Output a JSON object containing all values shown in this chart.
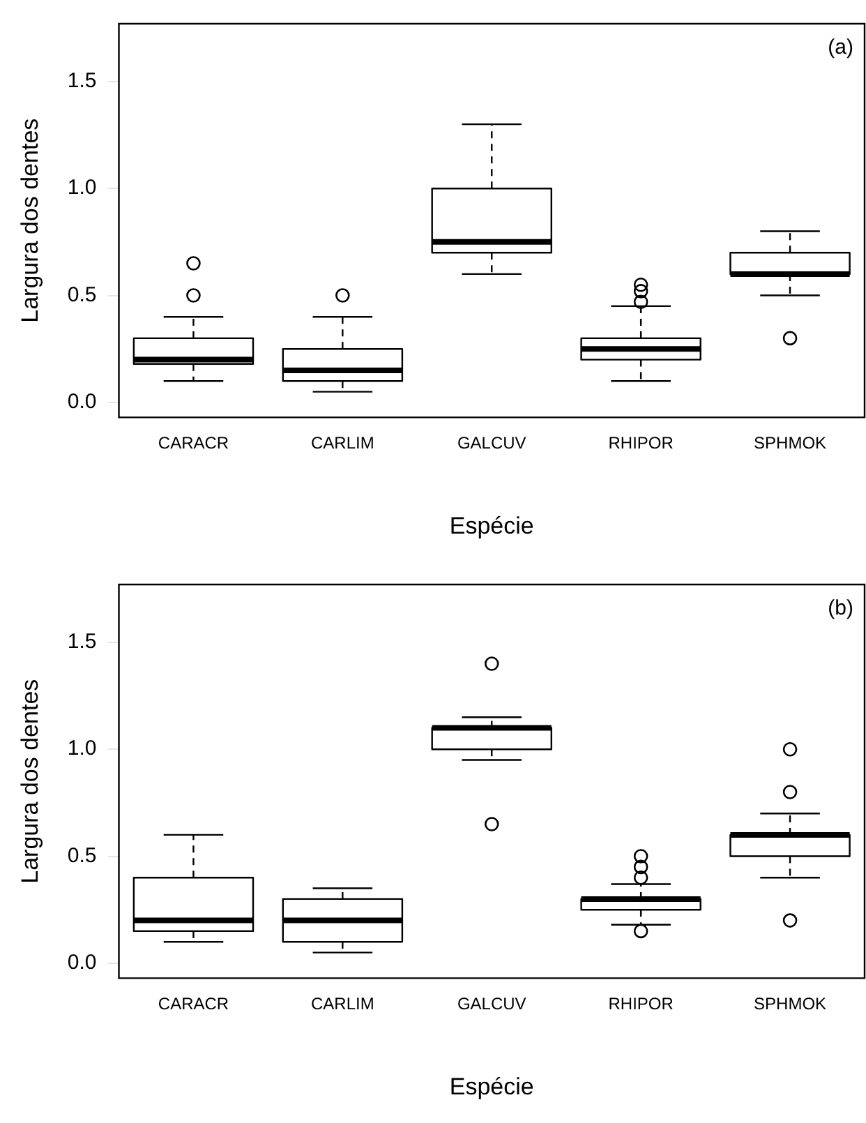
{
  "chart_data": [
    {
      "type": "box",
      "annotations": [
        "(a)"
      ],
      "xlabel": "Espécie",
      "ylabel": "Largura dos dentes",
      "categories": [
        "CARACR",
        "CARLIM",
        "GALCUV",
        "RHIPOR",
        "SPHMOK"
      ],
      "ylim": [
        -0.07,
        1.77
      ],
      "yticks": [
        {
          "value": 0,
          "label": "0.0"
        },
        {
          "value": 0.5,
          "label": "0.5"
        },
        {
          "value": 1,
          "label": "1.0"
        },
        {
          "value": 1.5,
          "label": "1.5"
        }
      ],
      "grid": false,
      "legend": false,
      "marker": "circle",
      "color": "#000000",
      "boxes": [
        {
          "low": 0.1,
          "q1": 0.18,
          "median": 0.2,
          "q3": 0.3,
          "high": 0.4,
          "outliers": [
            0.5,
            0.65
          ]
        },
        {
          "low": 0.05,
          "q1": 0.1,
          "median": 0.15,
          "q3": 0.25,
          "high": 0.4,
          "outliers": [
            0.5
          ]
        },
        {
          "low": 0.6,
          "q1": 0.7,
          "median": 0.75,
          "q3": 1.0,
          "high": 1.3
        },
        {
          "low": 0.1,
          "q1": 0.2,
          "median": 0.25,
          "q3": 0.3,
          "high": 0.45,
          "outliers": [
            0.47,
            0.52,
            0.55
          ]
        },
        {
          "low": 0.5,
          "q1": 0.6,
          "median": 0.6,
          "q3": 0.7,
          "high": 0.8,
          "outliers": [
            0.3
          ]
        }
      ]
    },
    {
      "type": "box",
      "annotations": [
        "(b)"
      ],
      "xlabel": "Espécie",
      "ylabel": "Largura dos dentes",
      "categories": [
        "CARACR",
        "CARLIM",
        "GALCUV",
        "RHIPOR",
        "SPHMOK"
      ],
      "ylim": [
        -0.07,
        1.77
      ],
      "yticks": [
        {
          "value": 0,
          "label": "0.0"
        },
        {
          "value": 0.5,
          "label": "0.5"
        },
        {
          "value": 1,
          "label": "1.0"
        },
        {
          "value": 1.5,
          "label": "1.5"
        }
      ],
      "grid": false,
      "legend": false,
      "marker": "circle",
      "color": "#000000",
      "boxes": [
        {
          "low": 0.1,
          "q1": 0.15,
          "median": 0.2,
          "q3": 0.4,
          "high": 0.6
        },
        {
          "low": 0.05,
          "q1": 0.1,
          "median": 0.2,
          "q3": 0.3,
          "high": 0.35
        },
        {
          "low": 0.95,
          "q1": 1.0,
          "median": 1.1,
          "q3": 1.1,
          "high": 1.15,
          "outliers": [
            0.65,
            1.4
          ]
        },
        {
          "low": 0.18,
          "q1": 0.25,
          "median": 0.3,
          "q3": 0.3,
          "high": 0.37,
          "outliers": [
            0.15,
            0.4,
            0.45,
            0.5
          ]
        },
        {
          "low": 0.4,
          "q1": 0.5,
          "median": 0.6,
          "q3": 0.6,
          "high": 0.7,
          "outliers": [
            0.2,
            0.8,
            1.0
          ]
        }
      ]
    }
  ]
}
